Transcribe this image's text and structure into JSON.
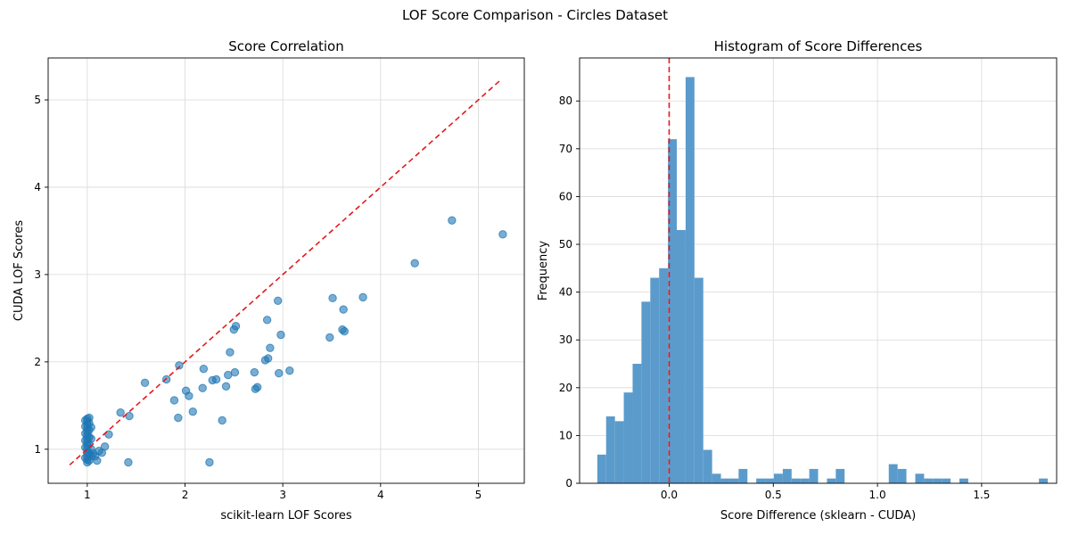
{
  "figure_title": "LOF Score Comparison - Circles Dataset",
  "colors": {
    "points": "#1f77b4",
    "bars": "#5b9bcc",
    "ref_line": "#e31a1c",
    "grid": "#d9d9d9"
  },
  "chart_data": [
    {
      "type": "scatter",
      "title": "Score Correlation",
      "xlabel": "scikit-learn LOF Scores",
      "ylabel": "CUDA LOF Scores",
      "xlim": [
        0.6,
        5.47
      ],
      "ylim": [
        0.61,
        5.48
      ],
      "xticks": [
        1,
        2,
        3,
        4,
        5
      ],
      "yticks": [
        1,
        2,
        3,
        4,
        5
      ],
      "grid": true,
      "reference_line": {
        "style": "dashed",
        "from": [
          0.82,
          0.82
        ],
        "to": [
          5.24,
          5.24
        ]
      },
      "points": [
        [
          1.0,
          0.85
        ],
        [
          1.0,
          0.88
        ],
        [
          1.0,
          0.92
        ],
        [
          1.0,
          0.96
        ],
        [
          1.0,
          1.0
        ],
        [
          1.0,
          1.04
        ],
        [
          1.0,
          1.08
        ],
        [
          1.0,
          1.12
        ],
        [
          1.0,
          1.16
        ],
        [
          1.0,
          1.2
        ],
        [
          1.0,
          1.24
        ],
        [
          1.0,
          1.28
        ],
        [
          1.0,
          1.32
        ],
        [
          1.0,
          1.35
        ],
        [
          0.98,
          0.9
        ],
        [
          0.98,
          1.02
        ],
        [
          0.98,
          1.1
        ],
        [
          0.98,
          1.18
        ],
        [
          0.98,
          1.26
        ],
        [
          0.98,
          1.33
        ],
        [
          1.02,
          0.87
        ],
        [
          1.02,
          0.95
        ],
        [
          1.02,
          1.06
        ],
        [
          1.02,
          1.14
        ],
        [
          1.02,
          1.22
        ],
        [
          1.02,
          1.3
        ],
        [
          1.02,
          1.36
        ],
        [
          1.04,
          0.92
        ],
        [
          1.04,
          1.0
        ],
        [
          1.04,
          1.12
        ],
        [
          1.04,
          1.25
        ],
        [
          1.06,
          0.95
        ],
        [
          1.08,
          0.92
        ],
        [
          1.1,
          0.87
        ],
        [
          1.12,
          0.98
        ],
        [
          1.15,
          0.96
        ],
        [
          1.18,
          1.03
        ],
        [
          1.22,
          1.17
        ],
        [
          1.34,
          1.42
        ],
        [
          1.42,
          0.85
        ],
        [
          1.43,
          1.38
        ],
        [
          1.59,
          1.76
        ],
        [
          1.81,
          1.8
        ],
        [
          1.89,
          1.56
        ],
        [
          1.93,
          1.36
        ],
        [
          1.94,
          1.96
        ],
        [
          2.01,
          1.67
        ],
        [
          2.04,
          1.61
        ],
        [
          2.08,
          1.43
        ],
        [
          2.18,
          1.7
        ],
        [
          2.19,
          1.92
        ],
        [
          2.25,
          0.85
        ],
        [
          2.28,
          1.79
        ],
        [
          2.32,
          1.8
        ],
        [
          2.38,
          1.33
        ],
        [
          2.42,
          1.72
        ],
        [
          2.44,
          1.85
        ],
        [
          2.46,
          2.11
        ],
        [
          2.5,
          2.37
        ],
        [
          2.51,
          1.88
        ],
        [
          2.52,
          2.41
        ],
        [
          2.71,
          1.88
        ],
        [
          2.72,
          1.69
        ],
        [
          2.74,
          1.71
        ],
        [
          2.82,
          2.02
        ],
        [
          2.84,
          2.48
        ],
        [
          2.85,
          2.04
        ],
        [
          2.87,
          2.16
        ],
        [
          2.95,
          2.7
        ],
        [
          2.96,
          1.87
        ],
        [
          2.98,
          2.31
        ],
        [
          3.07,
          1.9
        ],
        [
          3.48,
          2.28
        ],
        [
          3.51,
          2.73
        ],
        [
          3.61,
          2.37
        ],
        [
          3.62,
          2.6
        ],
        [
          3.63,
          2.35
        ],
        [
          3.82,
          2.74
        ],
        [
          4.35,
          3.13
        ],
        [
          4.73,
          3.62
        ],
        [
          5.25,
          3.46
        ]
      ]
    },
    {
      "type": "bar",
      "subtype": "histogram",
      "title": "Histogram of Score Differences",
      "xlabel": "Score Difference (sklearn - CUDA)",
      "ylabel": "Frequency",
      "xlim": [
        -0.43,
        1.86
      ],
      "ylim": [
        0,
        89
      ],
      "xticks": [
        0.0,
        0.5,
        1.0,
        1.5
      ],
      "xtick_labels": [
        "0.0",
        "0.5",
        "1.0",
        "1.5"
      ],
      "yticks": [
        0,
        10,
        20,
        30,
        40,
        50,
        60,
        70,
        80
      ],
      "grid": true,
      "reference_line": {
        "style": "dashed",
        "x": 0.0
      },
      "bin_start": -0.345,
      "bin_width": 0.0424,
      "counts": [
        6,
        14,
        13,
        19,
        25,
        38,
        43,
        45,
        72,
        53,
        85,
        43,
        7,
        2,
        1,
        1,
        3,
        0,
        1,
        1,
        2,
        3,
        1,
        1,
        3,
        0,
        1,
        3,
        0,
        0,
        0,
        0,
        0,
        4,
        3,
        0,
        2,
        1,
        1,
        1,
        0,
        1,
        0,
        0,
        0,
        0,
        0,
        0,
        0,
        0,
        1
      ]
    }
  ]
}
